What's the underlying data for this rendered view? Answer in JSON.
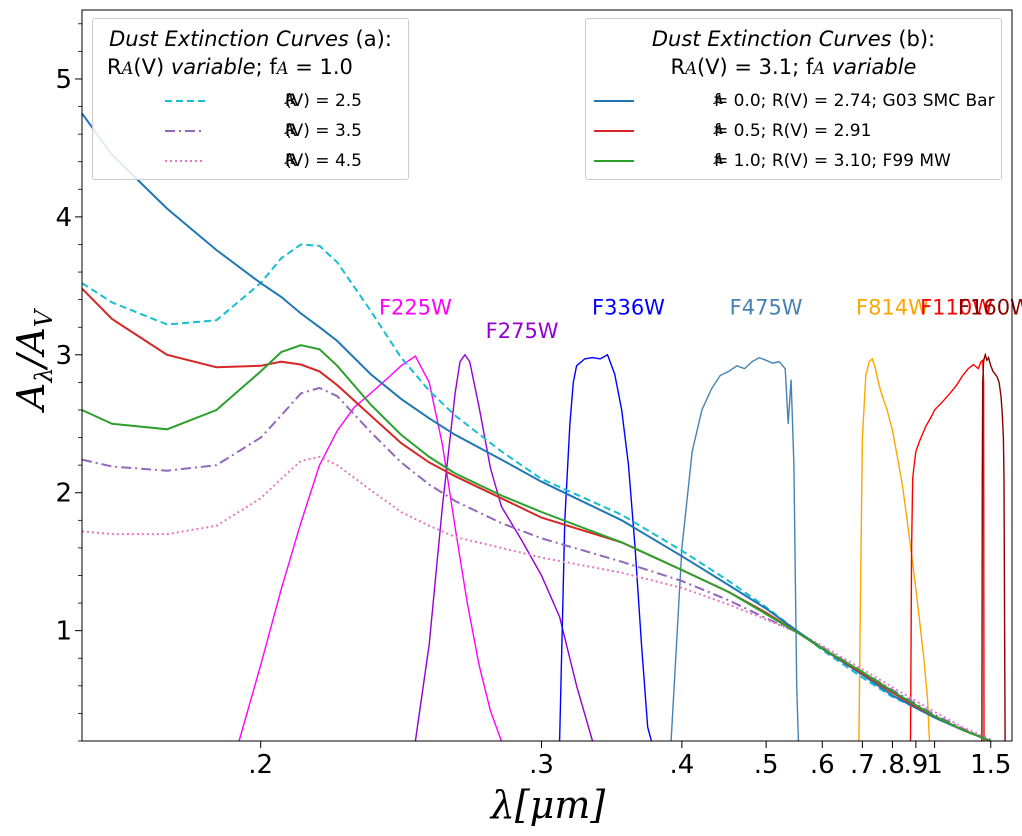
{
  "chart_data": {
    "type": "line",
    "ylabel": "A_λ/A_V",
    "xlabel": "λ[μm]",
    "x_scale": "reciprocal",
    "xlim": [
      0.165,
      1.85
    ],
    "ylim": [
      0.2,
      5.5
    ],
    "x_ticks": [
      0.2,
      0.3,
      0.4,
      0.5,
      0.6,
      0.7,
      0.8,
      0.9,
      1.0,
      1.5
    ],
    "x_tick_labels": [
      ".2",
      ".3",
      ".4",
      ".5",
      ".6",
      ".7",
      ".8",
      ".9",
      "1",
      "1.5"
    ],
    "y_ticks": [
      1,
      2,
      3,
      4,
      5
    ],
    "y_tick_labels": [
      "1",
      "2",
      "3",
      "4",
      "5"
    ],
    "grid": false,
    "legend_a": {
      "placement": "top-left",
      "title_italic": "Dust Extinction Curves",
      "title_tag": "(a)",
      "subtitle_prefix": "R",
      "subtitle_mid": "(V) ",
      "subtitle_italic": "variable",
      "subtitle_suffix": "; f",
      "subtitle_end": " = 1.0"
    },
    "legend_b": {
      "placement": "top-right",
      "title_italic": "Dust Extinction Curves",
      "title_tag": "(b)",
      "subtitle_prefix": "R",
      "subtitle_mid": "(V) = 3.1; f",
      "subtitle_italic": "variable"
    },
    "series": [
      {
        "name": "R_A(V) = 2.5",
        "label_pre": "R",
        "label_post": "(V) = 2.5",
        "group": "a",
        "color": "#17becf",
        "dash": "7,4",
        "x": [
          0.165,
          0.17,
          0.18,
          0.19,
          0.2,
          0.205,
          0.21,
          0.215,
          0.22,
          0.23,
          0.24,
          0.25,
          0.26,
          0.28,
          0.3,
          0.35,
          0.4,
          0.45,
          0.5,
          0.55,
          0.6,
          0.7,
          0.8,
          0.9,
          1.0,
          1.2,
          1.5
        ],
        "y": [
          3.52,
          3.38,
          3.22,
          3.25,
          3.52,
          3.7,
          3.8,
          3.79,
          3.67,
          3.32,
          2.98,
          2.74,
          2.56,
          2.3,
          2.1,
          1.84,
          1.58,
          1.36,
          1.17,
          1.0,
          0.86,
          0.66,
          0.52,
          0.44,
          0.37,
          0.28,
          0.2
        ]
      },
      {
        "name": "R_A(V) = 3.5",
        "label_pre": "R",
        "label_post": "(V) = 3.5",
        "group": "a",
        "color": "#9467bd",
        "dash": "10,4,2,4",
        "x": [
          0.165,
          0.17,
          0.18,
          0.19,
          0.2,
          0.205,
          0.21,
          0.215,
          0.22,
          0.23,
          0.24,
          0.25,
          0.26,
          0.28,
          0.3,
          0.35,
          0.4,
          0.45,
          0.5,
          0.55,
          0.6,
          0.7,
          0.8,
          0.9,
          1.0,
          1.2,
          1.5
        ],
        "y": [
          2.24,
          2.19,
          2.16,
          2.2,
          2.4,
          2.56,
          2.72,
          2.76,
          2.7,
          2.44,
          2.22,
          2.06,
          1.94,
          1.78,
          1.67,
          1.5,
          1.36,
          1.22,
          1.09,
          0.99,
          0.88,
          0.7,
          0.57,
          0.47,
          0.39,
          0.29,
          0.2
        ]
      },
      {
        "name": "R_A(V) = 4.5",
        "label_pre": "R",
        "label_post": "(V) = 4.5",
        "group": "a",
        "color": "#e377c2",
        "dash": "2,3",
        "x": [
          0.165,
          0.17,
          0.18,
          0.19,
          0.2,
          0.205,
          0.21,
          0.215,
          0.22,
          0.23,
          0.24,
          0.25,
          0.26,
          0.28,
          0.3,
          0.35,
          0.4,
          0.45,
          0.5,
          0.55,
          0.6,
          0.7,
          0.8,
          0.9,
          1.0,
          1.2,
          1.5
        ],
        "y": [
          1.72,
          1.7,
          1.7,
          1.76,
          1.96,
          2.1,
          2.23,
          2.26,
          2.2,
          2.02,
          1.86,
          1.76,
          1.68,
          1.6,
          1.53,
          1.42,
          1.31,
          1.19,
          1.08,
          0.99,
          0.89,
          0.72,
          0.59,
          0.49,
          0.41,
          0.3,
          0.21
        ]
      },
      {
        "name": "f_A = 0.0; R(V) = 2.74; G03 SMC Bar",
        "label_pre": "f",
        "label_post": " = 0.0; R(V) = 2.74; G03 SMC Bar",
        "group": "b",
        "color": "#1f77b4",
        "dash": "",
        "x": [
          0.165,
          0.17,
          0.18,
          0.19,
          0.2,
          0.205,
          0.21,
          0.215,
          0.22,
          0.23,
          0.24,
          0.25,
          0.26,
          0.28,
          0.3,
          0.35,
          0.4,
          0.45,
          0.5,
          0.55,
          0.6,
          0.7,
          0.8,
          0.9,
          1.0,
          1.2,
          1.5
        ],
        "y": [
          4.75,
          4.45,
          4.06,
          3.76,
          3.52,
          3.42,
          3.3,
          3.2,
          3.1,
          2.86,
          2.68,
          2.54,
          2.42,
          2.24,
          2.08,
          1.8,
          1.54,
          1.33,
          1.16,
          1.0,
          0.87,
          0.68,
          0.53,
          0.44,
          0.37,
          0.28,
          0.2
        ]
      },
      {
        "name": "f_A = 0.5; R(V) = 2.91",
        "label_pre": "f",
        "label_post": " = 0.5; R(V) = 2.91",
        "group": "b",
        "color": "#d62728",
        "dash": "",
        "x": [
          0.165,
          0.17,
          0.18,
          0.19,
          0.2,
          0.205,
          0.21,
          0.215,
          0.22,
          0.23,
          0.24,
          0.25,
          0.26,
          0.28,
          0.3,
          0.35,
          0.4,
          0.45,
          0.5,
          0.55,
          0.6,
          0.7,
          0.8,
          0.9,
          1.0,
          1.2,
          1.5
        ],
        "y": [
          3.48,
          3.26,
          3.0,
          2.91,
          2.92,
          2.95,
          2.93,
          2.88,
          2.78,
          2.56,
          2.36,
          2.22,
          2.12,
          1.96,
          1.82,
          1.64,
          1.44,
          1.28,
          1.13,
          0.99,
          0.87,
          0.69,
          0.55,
          0.45,
          0.38,
          0.28,
          0.2
        ]
      },
      {
        "name": "f_A = 1.0; R(V) = 3.10; F99 MW",
        "label_pre": "f",
        "label_post": " = 1.0; R(V) = 3.10; F99 MW",
        "group": "b",
        "color": "#2ca02c",
        "dash": "",
        "x": [
          0.165,
          0.17,
          0.18,
          0.19,
          0.2,
          0.205,
          0.21,
          0.215,
          0.22,
          0.23,
          0.24,
          0.25,
          0.26,
          0.28,
          0.3,
          0.35,
          0.4,
          0.45,
          0.5,
          0.55,
          0.6,
          0.7,
          0.8,
          0.9,
          1.0,
          1.2,
          1.5
        ],
        "y": [
          2.6,
          2.5,
          2.46,
          2.6,
          2.88,
          3.02,
          3.07,
          3.04,
          2.92,
          2.64,
          2.42,
          2.26,
          2.14,
          1.98,
          1.86,
          1.64,
          1.44,
          1.28,
          1.12,
          0.99,
          0.87,
          0.7,
          0.56,
          0.46,
          0.38,
          0.28,
          0.2
        ]
      }
    ],
    "filters": [
      {
        "name": "F225W",
        "color": "#ff00ff",
        "label_x": 0.245,
        "label_y": 3.35,
        "x": [
          0.195,
          0.2,
          0.205,
          0.21,
          0.215,
          0.22,
          0.225,
          0.23,
          0.235,
          0.24,
          0.245,
          0.25,
          0.255,
          0.26,
          0.265,
          0.27,
          0.275,
          0.28
        ],
        "y": [
          0.2,
          0.75,
          1.3,
          1.78,
          2.2,
          2.45,
          2.62,
          2.72,
          2.82,
          2.92,
          2.99,
          2.8,
          2.35,
          1.75,
          1.2,
          0.75,
          0.42,
          0.2
        ]
      },
      {
        "name": "F275W",
        "color": "#9400d3",
        "label_x": 0.29,
        "label_y": 3.18,
        "x": [
          0.245,
          0.25,
          0.255,
          0.26,
          0.262,
          0.264,
          0.266,
          0.27,
          0.275,
          0.28,
          0.29,
          0.3,
          0.31,
          0.32,
          0.33
        ],
        "y": [
          0.2,
          0.9,
          1.9,
          2.72,
          2.95,
          3.0,
          2.95,
          2.62,
          2.18,
          1.9,
          1.65,
          1.4,
          1.1,
          0.6,
          0.2
        ]
      },
      {
        "name": "F336W",
        "color": "#0000ff",
        "label_x": 0.355,
        "label_y": 3.35,
        "x": [
          0.31,
          0.313,
          0.316,
          0.318,
          0.32,
          0.325,
          0.33,
          0.335,
          0.34,
          0.345,
          0.35,
          0.355,
          0.36,
          0.365,
          0.37,
          0.373
        ],
        "y": [
          0.2,
          1.8,
          2.5,
          2.8,
          2.92,
          2.97,
          2.98,
          2.97,
          3.0,
          2.86,
          2.6,
          2.2,
          1.6,
          0.9,
          0.3,
          0.2
        ]
      },
      {
        "name": "F475W",
        "color": "#4682b4",
        "label_x": 0.5,
        "label_y": 3.35,
        "x": [
          0.39,
          0.4,
          0.41,
          0.42,
          0.43,
          0.44,
          0.45,
          0.46,
          0.47,
          0.48,
          0.49,
          0.5,
          0.51,
          0.52,
          0.53,
          0.535,
          0.54,
          0.545,
          0.55,
          0.553
        ],
        "y": [
          0.2,
          1.6,
          2.3,
          2.6,
          2.75,
          2.85,
          2.88,
          2.92,
          2.9,
          2.95,
          2.98,
          2.96,
          2.94,
          2.95,
          2.9,
          2.5,
          2.82,
          2.2,
          0.6,
          0.2
        ]
      },
      {
        "name": "F814W",
        "color": "#ffa500",
        "label_x": 0.8,
        "label_y": 3.35,
        "x": [
          0.69,
          0.695,
          0.7,
          0.71,
          0.72,
          0.73,
          0.74,
          0.75,
          0.76,
          0.78,
          0.8,
          0.82,
          0.84,
          0.86,
          0.88,
          0.9,
          0.92,
          0.94,
          0.96,
          0.97
        ],
        "y": [
          0.2,
          1.4,
          2.4,
          2.85,
          2.95,
          2.97,
          2.9,
          2.8,
          2.72,
          2.6,
          2.45,
          2.25,
          2.05,
          1.8,
          1.55,
          1.3,
          1.05,
          0.8,
          0.5,
          0.2
        ]
      },
      {
        "name": "F110W",
        "color": "#ff0000",
        "label_x": 1.15,
        "label_y": 3.35,
        "x": [
          0.875,
          0.88,
          0.885,
          0.89,
          0.9,
          0.92,
          0.95,
          0.98,
          1.0,
          1.05,
          1.1,
          1.15,
          1.2,
          1.25,
          1.3,
          1.35,
          1.38,
          1.4,
          1.41,
          1.415
        ],
        "y": [
          0.2,
          1.6,
          2.1,
          2.18,
          2.3,
          2.38,
          2.48,
          2.55,
          2.6,
          2.66,
          2.72,
          2.78,
          2.85,
          2.9,
          2.93,
          2.9,
          2.95,
          2.96,
          2.8,
          0.2
        ]
      },
      {
        "name": "F160W",
        "color": "#8b0000",
        "label_x": 1.55,
        "label_y": 3.35,
        "x": [
          1.39,
          1.395,
          1.4,
          1.41,
          1.42,
          1.43,
          1.45,
          1.47,
          1.5,
          1.53,
          1.56,
          1.59,
          1.62,
          1.65,
          1.67,
          1.69,
          1.7,
          1.71,
          1.72
        ],
        "y": [
          0.2,
          2.1,
          2.8,
          2.95,
          2.98,
          3.0,
          2.96,
          2.98,
          2.92,
          2.88,
          2.86,
          2.84,
          2.8,
          2.7,
          2.58,
          2.4,
          2.1,
          1.2,
          0.2
        ]
      }
    ]
  }
}
